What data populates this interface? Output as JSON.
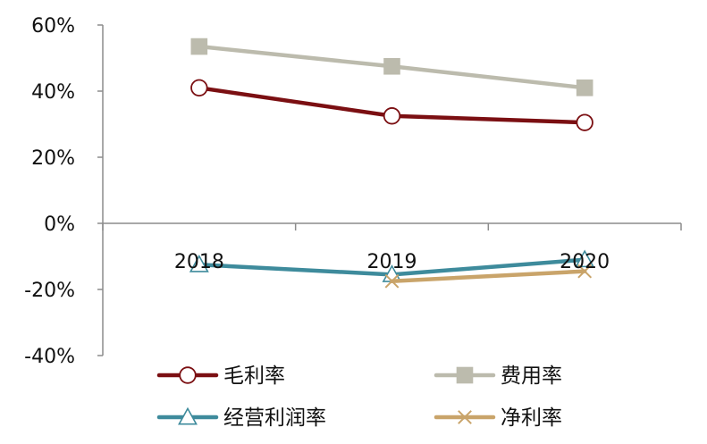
{
  "chart_data": {
    "type": "line",
    "title": "",
    "xlabel": "",
    "ylabel": "",
    "categories": [
      "2018",
      "2019",
      "2020"
    ],
    "ylim": [
      -40,
      60
    ],
    "yticks": [
      60,
      40,
      20,
      0,
      -20,
      -40
    ],
    "ytick_labels": [
      "60%",
      "40%",
      "20%",
      "0%",
      "-20%",
      "-40%"
    ],
    "grid": false,
    "legend_position": "bottom",
    "series": [
      {
        "name": "毛利率",
        "values": [
          41,
          32.5,
          30.5
        ],
        "color": "#7B0F12",
        "marker": "circle"
      },
      {
        "name": "费用率",
        "values": [
          53.5,
          47.5,
          41
        ],
        "color": "#BCBBAD",
        "marker": "square"
      },
      {
        "name": "经营利润率",
        "values": [
          -12.5,
          -15.5,
          -11
        ],
        "color": "#3E8B9C",
        "marker": "triangle"
      },
      {
        "name": "净利率",
        "values": [
          null,
          -17.5,
          -14.5
        ],
        "color": "#C9A46A",
        "marker": "x"
      }
    ]
  }
}
